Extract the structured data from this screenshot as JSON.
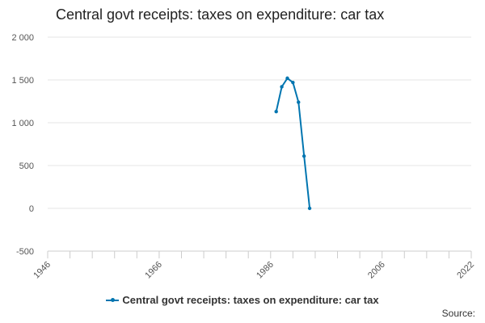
{
  "chart_data": {
    "type": "line",
    "title": "Central govt receipts: taxes on expenditure: car tax",
    "xlabel": "",
    "ylabel": "",
    "xlim": [
      1946,
      2022
    ],
    "ylim": [
      -500,
      2000
    ],
    "x_ticks": [
      1946,
      1966,
      1986,
      2006,
      2022
    ],
    "x_tick_labels": [
      "1946",
      "1966",
      "1986",
      "2006",
      "2022"
    ],
    "y_ticks": [
      -500,
      0,
      500,
      1000,
      1500,
      2000
    ],
    "y_tick_labels": [
      "-500",
      "0",
      "500",
      "1 000",
      "1 500",
      "2 000"
    ],
    "grid": true,
    "legend_position": "bottom",
    "series": [
      {
        "name": "Central govt receipts: taxes on expenditure: car tax",
        "color": "#0075b0",
        "x": [
          1987,
          1988,
          1989,
          1990,
          1991,
          1992,
          1993
        ],
        "values": [
          1130,
          1420,
          1520,
          1470,
          1240,
          610,
          0
        ]
      }
    ]
  },
  "source_label": "Source:"
}
